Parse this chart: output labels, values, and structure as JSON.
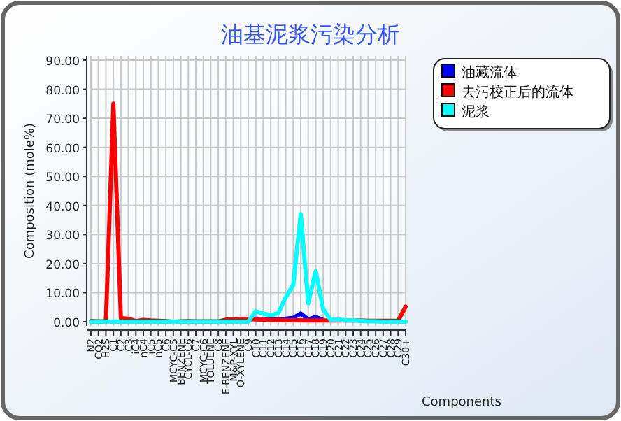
{
  "chart_data": {
    "type": "line",
    "title": "油基泥浆污染分析",
    "xlabel": "Components",
    "ylabel": "Composition (mole%)",
    "categories": [
      "N2",
      "CO2",
      "H2S",
      "C1",
      "C2",
      "C3",
      "iC4",
      "nC4",
      "iC5",
      "nC5",
      "C6",
      "MCYC-C5",
      "BENZENE",
      "CYCL-C6",
      "C7",
      "MCYC-C6",
      "TOLUENE",
      "C8",
      "E-BENZENE",
      "M&P-XYL",
      "O-XYLENE",
      "C9",
      "C10",
      "C11",
      "C12",
      "C13",
      "C14",
      "C15",
      "C16",
      "C17",
      "C18",
      "C19",
      "C20",
      "C21",
      "C22",
      "C23",
      "C24",
      "C25",
      "C26",
      "C27",
      "C28",
      "C29",
      "C30+"
    ],
    "series": [
      {
        "name": "油藏流体",
        "color": "#0000ff",
        "values": [
          null,
          null,
          null,
          null,
          null,
          null,
          null,
          null,
          null,
          null,
          null,
          null,
          null,
          null,
          null,
          null,
          null,
          null,
          null,
          null,
          null,
          null,
          1.0,
          0.9,
          0.8,
          0.8,
          1.0,
          1.3,
          2.8,
          0.8,
          1.6,
          0.6,
          null,
          null,
          null,
          null,
          null,
          null,
          null,
          null,
          null,
          null,
          null
        ]
      },
      {
        "name": "去污校正后的流体",
        "color": "#ff0000",
        "values": [
          0.2,
          0.1,
          0.1,
          75,
          1.2,
          1.0,
          0.2,
          0.6,
          0.4,
          0.3,
          0.2,
          0.0,
          0.1,
          0.2,
          0.1,
          0.1,
          0.1,
          0.1,
          0.7,
          0.7,
          0.9,
          0.9,
          0.8,
          0.7,
          0.6,
          0.6,
          0.5,
          0.5,
          0.5,
          0.4,
          0.4,
          0.4,
          0.4,
          0.4,
          0.4,
          0.4,
          0.4,
          0.3,
          0.3,
          0.3,
          0.3,
          0.3,
          5.2
        ]
      },
      {
        "name": "泥浆",
        "color": "#00ffff",
        "values": [
          0,
          0,
          0,
          0,
          0,
          0,
          0,
          0,
          0,
          0,
          0,
          0,
          0,
          0,
          0,
          0,
          0,
          0,
          0,
          0,
          0,
          0,
          3.6,
          2.8,
          2.2,
          2.9,
          8.4,
          12.6,
          37,
          6.4,
          17.4,
          4.3,
          0.6,
          0.7,
          0.5,
          0.5,
          0.3,
          0.1,
          0.1,
          0,
          0,
          0,
          0
        ]
      }
    ],
    "ylim": [
      0,
      90
    ],
    "yticks": [
      {
        "value": 0,
        "label": "0.00"
      },
      {
        "value": 10,
        "label": "10.00"
      },
      {
        "value": 20,
        "label": "20.00"
      },
      {
        "value": 30,
        "label": "30.00"
      },
      {
        "value": 40,
        "label": "40.00"
      },
      {
        "value": 50,
        "label": "50.00"
      },
      {
        "value": 60,
        "label": "60.00"
      },
      {
        "value": 70,
        "label": "70.00"
      },
      {
        "value": 80,
        "label": "80.00"
      },
      {
        "value": 90,
        "label": "90.00"
      }
    ],
    "grid": true,
    "legend": "top right",
    "marker": "none",
    "line_style": "solid"
  }
}
